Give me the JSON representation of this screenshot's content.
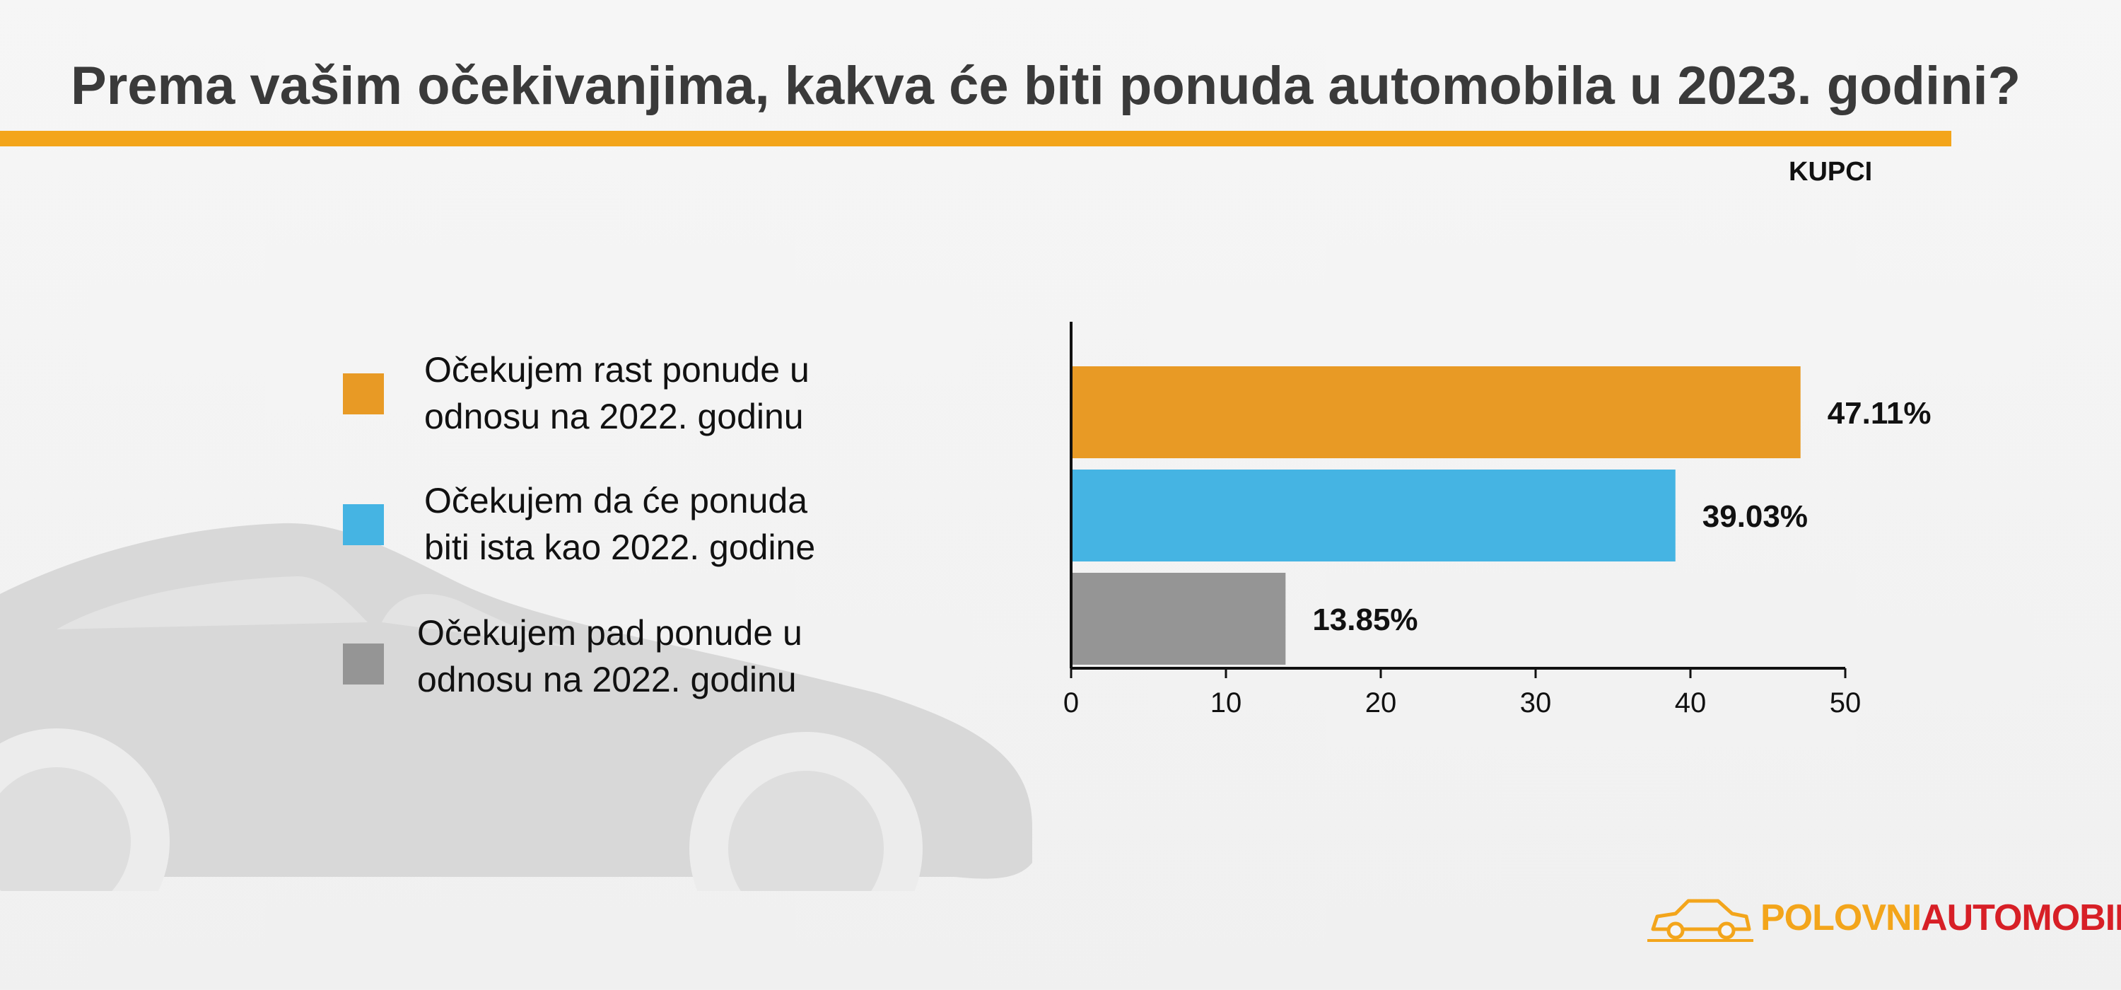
{
  "title": "Prema vašim očekivanjima, kakva će biti ponuda automobila u 2023. godini?",
  "subtitle": "KUPCI",
  "legend": [
    {
      "label": "Očekujem rast ponude u\nodnosu na 2022. godinu",
      "color": "#e89a25"
    },
    {
      "label": "Očekujem da će ponuda\nbiti ista kao 2022. godine",
      "color": "#45b4e3"
    },
    {
      "label": "Očekujem pad ponude u\nodnosu na 2022. godinu",
      "color": "#959595"
    }
  ],
  "chart_data": {
    "type": "bar",
    "orientation": "horizontal",
    "title": "",
    "xlabel": "",
    "ylabel": "",
    "categories": [
      "Očekujem rast ponude u odnosu na 2022. godinu",
      "Očekujem da će ponuda biti ista kao 2022. godine",
      "Očekujem pad ponude u odnosu na 2022. godinu"
    ],
    "values": [
      47.11,
      39.03,
      13.85
    ],
    "data_labels": [
      "47.11%",
      "39.03%",
      "13.85%"
    ],
    "colors": [
      "#e89a25",
      "#45b4e3",
      "#959595"
    ],
    "xlim": [
      0,
      50
    ],
    "xticks": [
      0,
      10,
      20,
      30,
      40,
      50
    ],
    "grid": false,
    "legend_placement": "left"
  },
  "logo": {
    "part1": "POLOVNI",
    "part2": "AUTOMOBILI",
    "color1": "#f3a51b",
    "color2": "#d71f26"
  }
}
